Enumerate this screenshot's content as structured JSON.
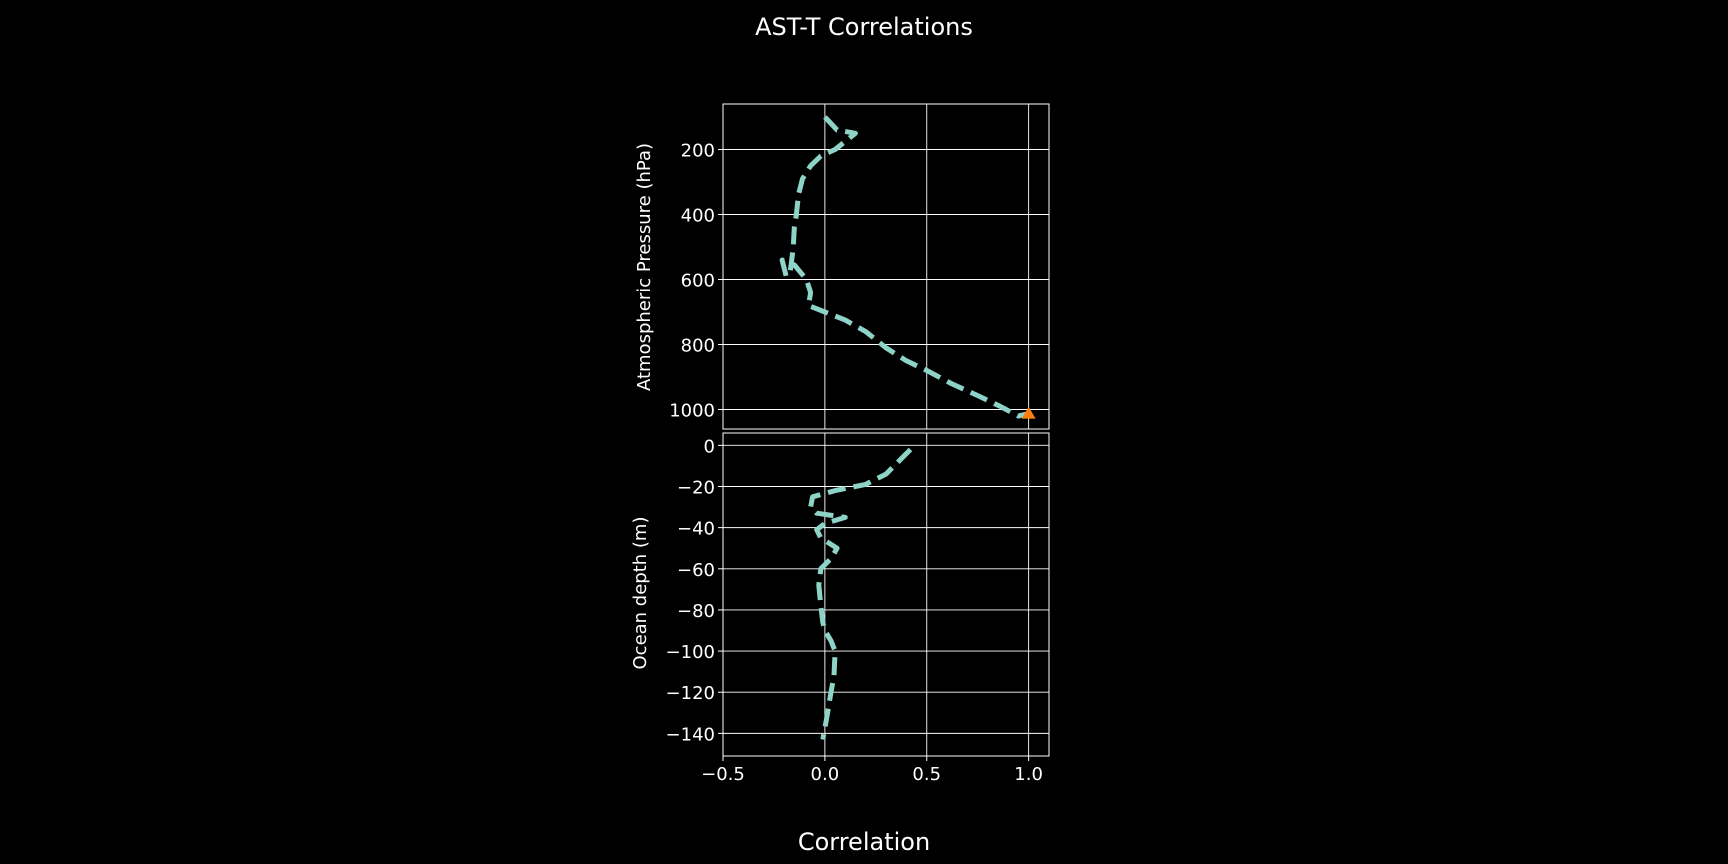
{
  "figure": {
    "title": "AST-T Correlations",
    "xlabel": "Correlation",
    "background": "#000000",
    "foreground": "#ffffff",
    "grid_color": "#ffffff"
  },
  "chart_data": [
    {
      "type": "line",
      "panel": "atmosphere",
      "ylabel": "Atmospheric Pressure (hPa)",
      "xlim": [
        -0.5,
        1.1
      ],
      "ylim": [
        1060,
        60
      ],
      "y_inverted": true,
      "grid": true,
      "yticks": [
        200,
        400,
        600,
        800,
        1000
      ],
      "xticks": [
        -0.5,
        0.0,
        0.5,
        1.0
      ],
      "series": [
        {
          "style": "dashed",
          "color": "#8dd3c7",
          "x": [
            0.0,
            0.03,
            0.06,
            0.15,
            0.05,
            -0.02,
            -0.07,
            -0.11,
            -0.13,
            -0.14,
            -0.15,
            -0.155,
            -0.16,
            -0.165,
            -0.17,
            -0.19,
            -0.21,
            -0.15,
            -0.09,
            -0.07,
            -0.08,
            0.0,
            0.1,
            0.2,
            0.3,
            0.4,
            0.5,
            0.62,
            0.76,
            0.86,
            0.95,
            1.0
          ],
          "y": [
            100,
            120,
            140,
            150,
            200,
            220,
            250,
            290,
            340,
            400,
            440,
            500,
            525,
            550,
            575,
            590,
            540,
            555,
            600,
            640,
            680,
            700,
            725,
            760,
            810,
            850,
            880,
            920,
            960,
            990,
            1020,
            1013
          ]
        },
        {
          "style": "marker",
          "marker": "triangle",
          "color": "#ff7f0e",
          "x": [
            1.0
          ],
          "y": [
            1013
          ]
        }
      ]
    },
    {
      "type": "line",
      "panel": "ocean",
      "ylabel": "Ocean depth (m)",
      "xlim": [
        -0.5,
        1.1
      ],
      "ylim": [
        -151,
        6
      ],
      "grid": true,
      "yticks": [
        0,
        -20,
        -40,
        -60,
        -80,
        -100,
        -120,
        -140
      ],
      "ytick_labels": [
        "0",
        "−20",
        "−40",
        "−60",
        "−80",
        "−100",
        "−120",
        "−140"
      ],
      "xticks": [
        -0.5,
        0.0,
        0.5,
        1.0
      ],
      "xtick_labels": [
        "−0.5",
        "0.0",
        "0.5",
        "1.0"
      ],
      "series": [
        {
          "style": "dashed",
          "color": "#8dd3c7",
          "x": [
            0.42,
            0.38,
            0.3,
            0.2,
            0.05,
            -0.06,
            -0.07,
            -0.04,
            0.1,
            0.0,
            -0.04,
            -0.02,
            0.06,
            0.03,
            -0.02,
            -0.03,
            -0.02,
            -0.01,
            0.0,
            0.03,
            0.05,
            0.045,
            0.03,
            0.01,
            -0.01
          ],
          "y": [
            -2,
            -6,
            -14,
            -19,
            -22,
            -25,
            -30,
            -33,
            -35,
            -38,
            -41,
            -45,
            -50,
            -55,
            -60,
            -68,
            -78,
            -86,
            -90,
            -95,
            -100,
            -112,
            -120,
            -132,
            -143
          ]
        }
      ]
    }
  ]
}
